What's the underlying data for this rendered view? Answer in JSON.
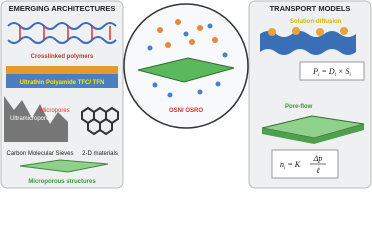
{
  "left": {
    "title": "EMERGING ARCHITECTURES",
    "items": [
      "Crosslinked polymers",
      "Ultrathin Polyamide TFC/ TFN",
      "Carbon Molecular Sieves",
      "2-D materials",
      "Microporous structures"
    ],
    "pores": [
      "Ultramicropores",
      "Micropores"
    ]
  },
  "center": {
    "label": "OSN/ OSRO"
  },
  "right": {
    "title": "TRANSPORT MODELS",
    "models": [
      "Solution-diffusion",
      "Pore-flow"
    ],
    "eq1": {
      "lhs": "P",
      "lhs_sub": "i",
      "op": " = ",
      "a": "D",
      "a_sub": "i",
      "mul": " × ",
      "b": "S",
      "b_sub": "i"
    },
    "eq2": {
      "lhs": "n",
      "lhs_sub": "i",
      "op": " = K",
      "num": "Δp",
      "den": "ℓ"
    }
  }
}
